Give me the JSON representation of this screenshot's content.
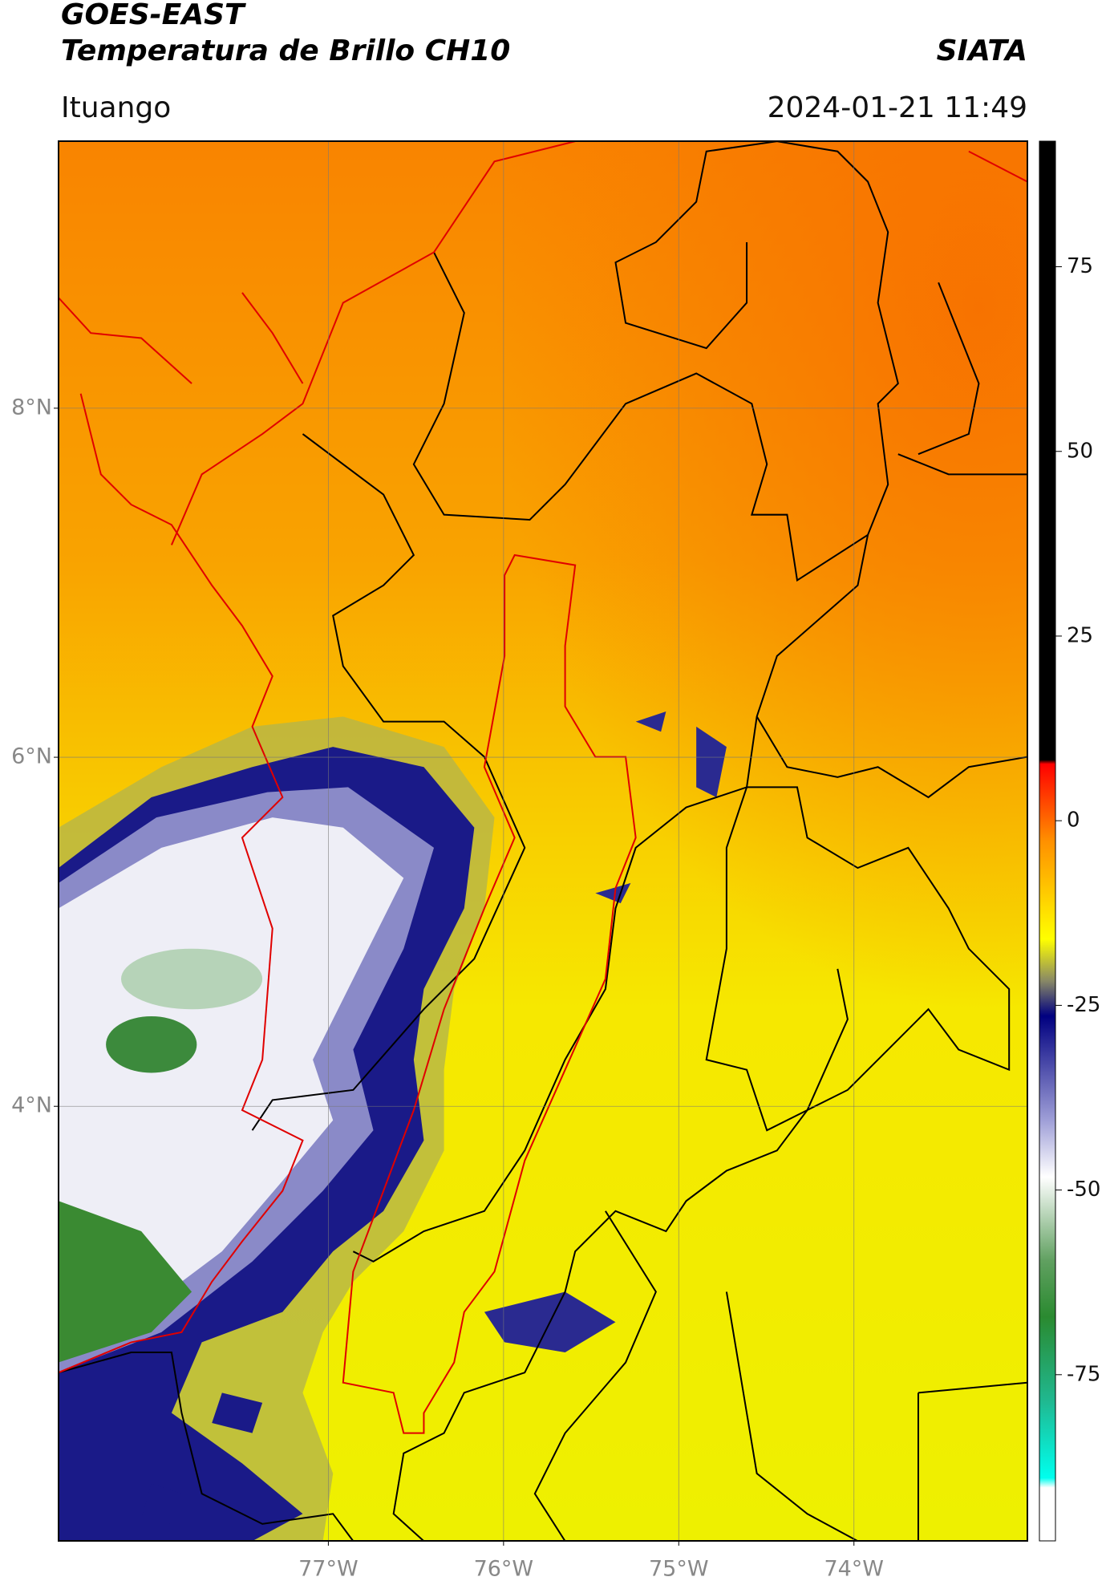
{
  "map": {
    "title": "GOES-EAST",
    "subtitle": "Temperatura de Brillo CH10",
    "source": "SIATA",
    "location": "Ituango",
    "datetime": "2024-01-21 11:49",
    "xlim": [
      -78.54,
      -73.01
    ],
    "ylim": [
      1.51,
      9.53
    ],
    "xticks": [
      {
        "value": -77,
        "label": "77°W"
      },
      {
        "value": -76,
        "label": "76°W"
      },
      {
        "value": -75,
        "label": "75°W"
      },
      {
        "value": -74,
        "label": "74°W"
      }
    ],
    "yticks": [
      {
        "value": 8,
        "label": "8°N"
      },
      {
        "value": 6,
        "label": "6°N"
      },
      {
        "value": 4,
        "label": "4°N"
      }
    ],
    "grid": true,
    "colorbar": {
      "lim": [
        -97.5,
        92
      ],
      "ticks": [
        75,
        50,
        25,
        0,
        -25,
        -50,
        -75
      ]
    }
  }
}
